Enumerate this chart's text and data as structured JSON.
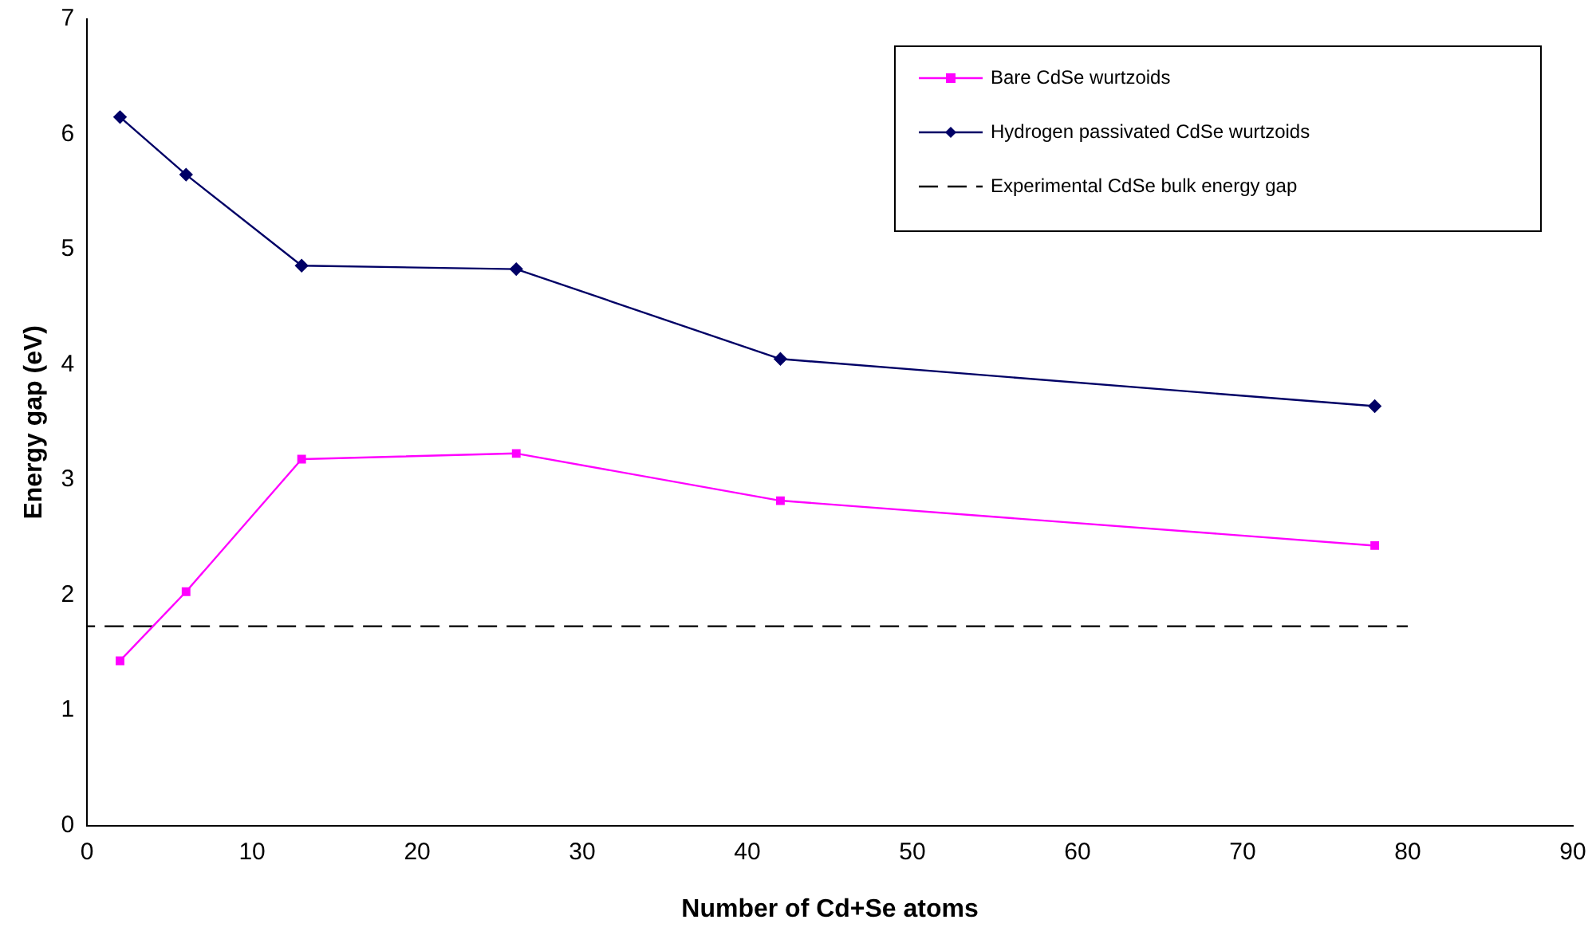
{
  "chart_data": {
    "type": "line",
    "xlabel": "Number of Cd+Se atoms",
    "ylabel": "Energy gap (eV)",
    "xlim": [
      0,
      90
    ],
    "xticks": [
      0,
      10,
      20,
      30,
      40,
      50,
      60,
      70,
      80,
      90
    ],
    "ylim": [
      0,
      7
    ],
    "yticks": [
      0,
      1,
      2,
      3,
      4,
      5,
      6,
      7
    ],
    "grid": false,
    "legend": "top right",
    "series": [
      {
        "name": "Bare CdSe wurtzoids",
        "color": "#ff00ff",
        "marker": "square",
        "line_style": "solid",
        "x": [
          2,
          6,
          13,
          26,
          42,
          78
        ],
        "values": [
          1.43,
          2.03,
          3.18,
          3.23,
          2.82,
          2.43
        ]
      },
      {
        "name": "Hydrogen passivated CdSe wurtzoids",
        "color": "#000066",
        "marker": "diamond",
        "line_style": "solid",
        "x": [
          2,
          6,
          13,
          26,
          42,
          78
        ],
        "values": [
          6.15,
          5.65,
          4.86,
          4.83,
          4.05,
          3.64
        ]
      },
      {
        "name": "Experimental CdSe bulk energy gap",
        "color": "#000000",
        "marker": "none",
        "line_style": "dashed",
        "x": [
          0,
          80
        ],
        "values": [
          1.73,
          1.73
        ]
      }
    ]
  }
}
